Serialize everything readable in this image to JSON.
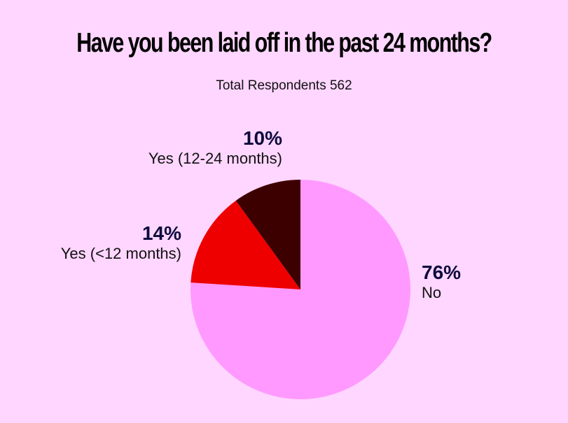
{
  "chart_data": {
    "type": "pie",
    "title": "Have you been laid off in the past 24 months?",
    "subtitle": "Total Respondents 562",
    "slices": [
      {
        "label": "No",
        "value": 76,
        "value_label": "76%",
        "color": "#FF99FF"
      },
      {
        "label": "Yes (<12 months)",
        "value": 14,
        "value_label": "14%",
        "color": "#EE0000"
      },
      {
        "label": "Yes (12-24 months)",
        "value": 10,
        "value_label": "10%",
        "color": "#3D0000"
      }
    ],
    "start_angle": "top",
    "direction": "clockwise",
    "legend": "none"
  }
}
